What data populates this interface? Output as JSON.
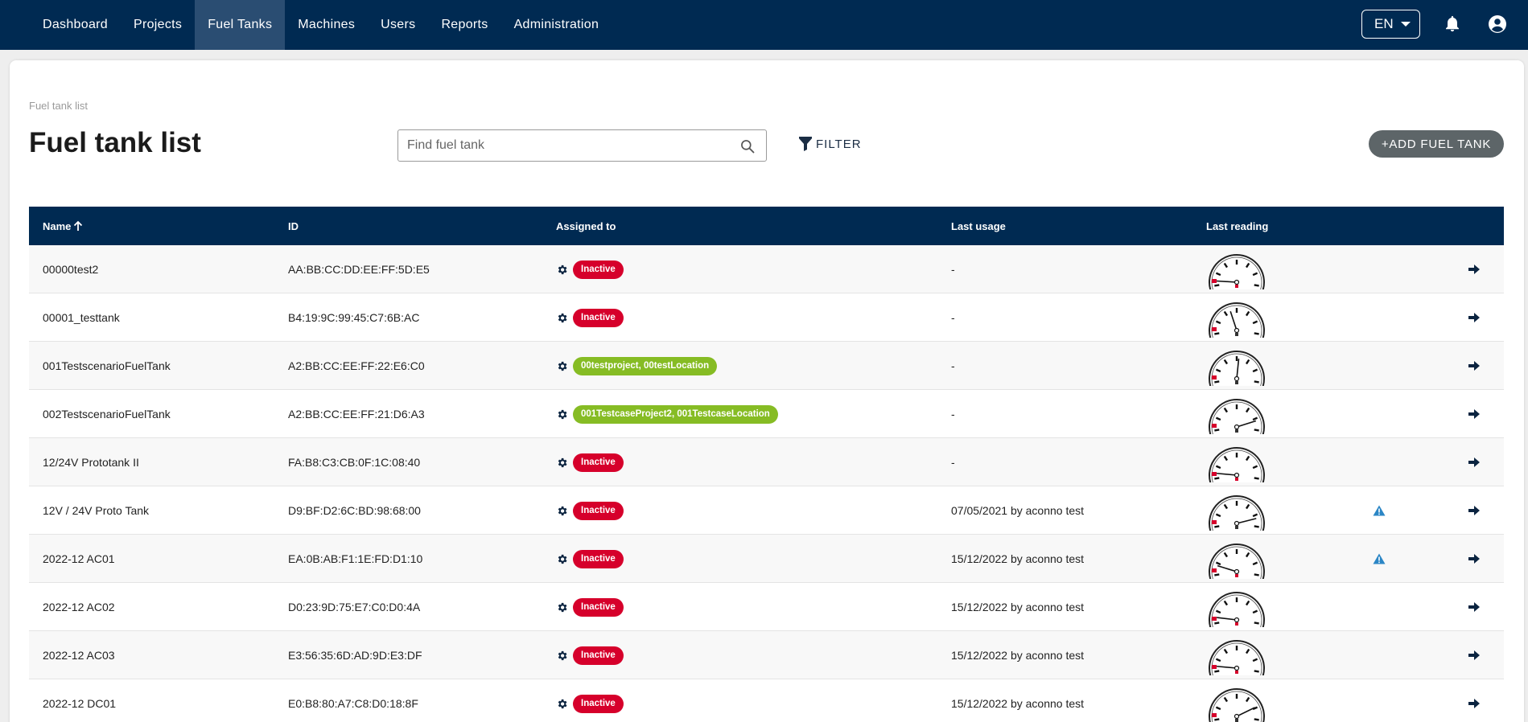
{
  "nav": {
    "items": [
      {
        "label": "Dashboard",
        "active": false
      },
      {
        "label": "Projects",
        "active": false
      },
      {
        "label": "Fuel Tanks",
        "active": true
      },
      {
        "label": "Machines",
        "active": false
      },
      {
        "label": "Users",
        "active": false
      },
      {
        "label": "Reports",
        "active": false
      },
      {
        "label": "Administration",
        "active": false
      }
    ],
    "language": "EN",
    "icons": {
      "notifications": "bell-icon",
      "account": "user-circle-icon"
    }
  },
  "page": {
    "breadcrumb": "Fuel tank list",
    "title": "Fuel tank list",
    "search_placeholder": "Find fuel tank",
    "filter_label": "FILTER",
    "add_button_label": "+ADD FUEL TANK"
  },
  "colors": {
    "header": "#002a52",
    "active_nav": "#2a4d72",
    "inactive_badge": "#d6002b",
    "assigned_badge": "#86bc24",
    "warning_icon": "#2b86c5",
    "add_button": "#5d6568"
  },
  "table": {
    "columns": {
      "name": "Name",
      "id": "ID",
      "assigned": "Assigned to",
      "last_usage": "Last usage",
      "last_reading": "Last reading"
    },
    "sort": {
      "column": "Name",
      "direction": "ascending"
    },
    "rows": [
      {
        "name": "00000test2",
        "id": "AA:BB:CC:DD:EE:FF:5D:E5",
        "assigned": "Inactive",
        "status": "inactive",
        "last_usage": "-",
        "gauge_level": 0.02,
        "warning": false
      },
      {
        "name": "00001_testtank",
        "id": "B4:19:9C:99:45:C7:6B:AC",
        "assigned": "Inactive",
        "status": "inactive",
        "last_usage": "-",
        "gauge_level": 0.42,
        "warning": false
      },
      {
        "name": "001TestscenarioFuelTank",
        "id": "A2:BB:CC:EE:FF:22:E6:C0",
        "assigned": "00testproject, 00testLocation",
        "status": "assigned",
        "last_usage": "-",
        "gauge_level": 0.56,
        "warning": false
      },
      {
        "name": "002TestscenarioFuelTank",
        "id": "A2:BB:CC:EE:FF:21:D6:A3",
        "assigned": "001TestcaseProject2, 001TestcaseLocation",
        "status": "assigned",
        "last_usage": "-",
        "gauge_level": 0.95,
        "warning": false
      },
      {
        "name": "12/24V Prototank II",
        "id": "FA:B8:C3:CB:0F:1C:08:40",
        "assigned": "Inactive",
        "status": "inactive",
        "last_usage": "-",
        "gauge_level": 0.03,
        "warning": false
      },
      {
        "name": "12V / 24V Proto Tank",
        "id": "D9:BF:D2:6C:BD:98:68:00",
        "assigned": "Inactive",
        "status": "inactive",
        "last_usage": "07/05/2021 by aconno test",
        "gauge_level": 0.97,
        "warning": true
      },
      {
        "name": "2022-12 AC01",
        "id": "EA:0B:AB:F1:1E:FD:D1:10",
        "assigned": "Inactive",
        "status": "inactive",
        "last_usage": "15/12/2022 by aconno test",
        "gauge_level": 0.1,
        "warning": true
      },
      {
        "name": "2022-12 AC02",
        "id": "D0:23:9D:75:E7:C0:D0:4A",
        "assigned": "Inactive",
        "status": "inactive",
        "last_usage": "15/12/2022 by aconno test",
        "gauge_level": 0.04,
        "warning": false
      },
      {
        "name": "2022-12 AC03",
        "id": "E3:56:35:6D:AD:9D:E3:DF",
        "assigned": "Inactive",
        "status": "inactive",
        "last_usage": "15/12/2022 by aconno test",
        "gauge_level": 0.03,
        "warning": false
      },
      {
        "name": "2022-12 DC01",
        "id": "E0:B8:80:A7:C8:D0:18:8F",
        "assigned": "Inactive",
        "status": "inactive",
        "last_usage": "15/12/2022 by aconno test",
        "gauge_level": 0.9,
        "warning": false
      }
    ]
  }
}
